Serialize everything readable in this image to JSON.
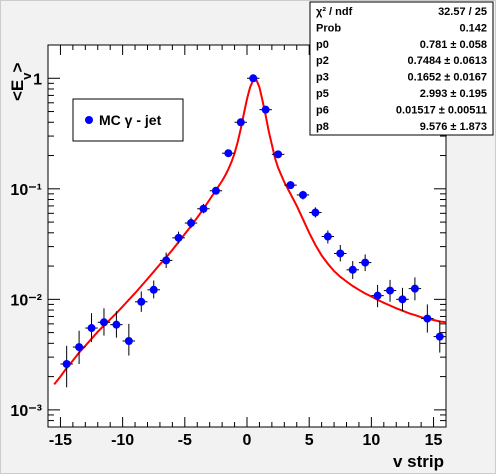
{
  "colors": {
    "marker": "#0000ff",
    "fit": "#ff0000",
    "frame": "#000000",
    "pad": "#f2f2f2"
  },
  "stats": {
    "rows": [
      {
        "label": "χ² / ndf",
        "value": "32.57 / 25"
      },
      {
        "label": "Prob",
        "value": "0.142"
      },
      {
        "label": "p0",
        "value": "0.781 ± 0.058"
      },
      {
        "label": "p2",
        "value": "0.7484 ± 0.0613"
      },
      {
        "label": "p3",
        "value": "0.1652 ± 0.0167"
      },
      {
        "label": "p5",
        "value": "2.993 ± 0.195"
      },
      {
        "label": "p6",
        "value": "0.01517 ± 0.00511"
      },
      {
        "label": "p8",
        "value": "9.576 ± 1.873"
      }
    ]
  },
  "chart_data": {
    "type": "scatter",
    "xlabel": "v strip",
    "ylabel": "<E_v>",
    "xlim": [
      -16,
      16
    ],
    "ylim": [
      0.0007,
      2.0
    ],
    "yscale": "log",
    "grid": false,
    "legend_position": "top-left",
    "x_ticks": [
      -15,
      -10,
      -5,
      0,
      5,
      10,
      15
    ],
    "x_tick_labels": [
      "-15",
      "-10",
      "-5",
      "0",
      "5",
      "10",
      "15"
    ],
    "y_ticks": [
      0.001,
      0.01,
      0.1,
      1
    ],
    "y_tick_labels": [
      "10⁻³",
      "10⁻²",
      "10⁻¹",
      "1"
    ],
    "series": [
      {
        "name": "MC γ - jet",
        "marker": "circle",
        "points": [
          {
            "x": -14.5,
            "y": 0.0026,
            "ylo": 0.0016,
            "yhi": 0.0038
          },
          {
            "x": -13.5,
            "y": 0.0037,
            "ylo": 0.0026,
            "yhi": 0.0052
          },
          {
            "x": -12.5,
            "y": 0.0055,
            "ylo": 0.0041,
            "yhi": 0.0075
          },
          {
            "x": -11.5,
            "y": 0.0062,
            "ylo": 0.0047,
            "yhi": 0.0083
          },
          {
            "x": -10.5,
            "y": 0.0059,
            "ylo": 0.0045,
            "yhi": 0.0078
          },
          {
            "x": -9.5,
            "y": 0.0042,
            "ylo": 0.0031,
            "yhi": 0.006
          },
          {
            "x": -8.5,
            "y": 0.0095,
            "ylo": 0.0077,
            "yhi": 0.0118
          },
          {
            "x": -7.5,
            "y": 0.0122,
            "ylo": 0.0102,
            "yhi": 0.0148
          },
          {
            "x": -6.5,
            "y": 0.0225,
            "ylo": 0.0192,
            "yhi": 0.0265
          },
          {
            "x": -5.5,
            "y": 0.036,
            "ylo": 0.032,
            "yhi": 0.041
          },
          {
            "x": -4.5,
            "y": 0.049,
            "ylo": 0.044,
            "yhi": 0.055
          },
          {
            "x": -3.5,
            "y": 0.066,
            "ylo": 0.06,
            "yhi": 0.073
          },
          {
            "x": -2.5,
            "y": 0.096,
            "ylo": 0.089,
            "yhi": 0.104
          },
          {
            "x": -1.5,
            "y": 0.21,
            "ylo": 0.198,
            "yhi": 0.223
          },
          {
            "x": -0.5,
            "y": 0.4,
            "ylo": 0.385,
            "yhi": 0.415
          },
          {
            "x": 0.5,
            "y": 1.0,
            "ylo": 0.975,
            "yhi": 1.025
          },
          {
            "x": 1.5,
            "y": 0.52,
            "ylo": 0.502,
            "yhi": 0.538
          },
          {
            "x": 2.5,
            "y": 0.205,
            "ylo": 0.193,
            "yhi": 0.218
          },
          {
            "x": 3.5,
            "y": 0.108,
            "ylo": 0.1,
            "yhi": 0.117
          },
          {
            "x": 4.5,
            "y": 0.088,
            "ylo": 0.08,
            "yhi": 0.096
          },
          {
            "x": 5.5,
            "y": 0.061,
            "ylo": 0.055,
            "yhi": 0.068
          },
          {
            "x": 6.5,
            "y": 0.037,
            "ylo": 0.032,
            "yhi": 0.042
          },
          {
            "x": 7.5,
            "y": 0.026,
            "ylo": 0.022,
            "yhi": 0.031
          },
          {
            "x": 8.5,
            "y": 0.0185,
            "ylo": 0.0153,
            "yhi": 0.0222
          },
          {
            "x": 9.5,
            "y": 0.0215,
            "ylo": 0.018,
            "yhi": 0.0255
          },
          {
            "x": 10.5,
            "y": 0.0108,
            "ylo": 0.0085,
            "yhi": 0.0135
          },
          {
            "x": 11.5,
            "y": 0.012,
            "ylo": 0.0095,
            "yhi": 0.015
          },
          {
            "x": 12.5,
            "y": 0.01,
            "ylo": 0.0078,
            "yhi": 0.0127
          },
          {
            "x": 13.5,
            "y": 0.0125,
            "ylo": 0.0098,
            "yhi": 0.0158
          },
          {
            "x": 14.5,
            "y": 0.0067,
            "ylo": 0.005,
            "yhi": 0.009
          },
          {
            "x": 15.5,
            "y": 0.0046,
            "ylo": 0.0033,
            "yhi": 0.0064
          }
        ]
      },
      {
        "name": "fit",
        "type": "line",
        "x": [
          -15.5,
          -15,
          -14.5,
          -14,
          -13.5,
          -13,
          -12.5,
          -12,
          -11.5,
          -11,
          -10.5,
          -10,
          -9.5,
          -9,
          -8.5,
          -8,
          -7.5,
          -7,
          -6.5,
          -6,
          -5.5,
          -5,
          -4.5,
          -4,
          -3.5,
          -3,
          -2.5,
          -2,
          -1.75,
          -1.5,
          -1.25,
          -1,
          -0.75,
          -0.5,
          -0.25,
          0,
          0.25,
          0.5,
          0.6,
          0.75,
          1,
          1.25,
          1.5,
          1.75,
          2,
          2.25,
          2.5,
          3,
          3.5,
          4,
          4.5,
          5,
          5.5,
          6,
          6.5,
          7,
          7.5,
          8,
          8.5,
          9,
          9.5,
          10,
          10.5,
          11,
          11.5,
          12,
          12.5,
          13,
          13.5,
          14,
          14.5,
          15,
          15.5,
          16
        ],
        "y": [
          0.0017,
          0.002,
          0.0024,
          0.0028,
          0.0033,
          0.0038,
          0.0044,
          0.0051,
          0.0058,
          0.0066,
          0.0075,
          0.0086,
          0.0099,
          0.0114,
          0.0132,
          0.0153,
          0.0178,
          0.0207,
          0.024,
          0.028,
          0.033,
          0.039,
          0.046,
          0.055,
          0.066,
          0.08,
          0.097,
          0.118,
          0.132,
          0.15,
          0.175,
          0.21,
          0.265,
          0.35,
          0.48,
          0.65,
          0.83,
          0.96,
          0.99,
          0.97,
          0.83,
          0.63,
          0.46,
          0.33,
          0.25,
          0.19,
          0.155,
          0.115,
          0.09,
          0.07,
          0.053,
          0.04,
          0.031,
          0.025,
          0.021,
          0.018,
          0.016,
          0.0145,
          0.0132,
          0.0122,
          0.0113,
          0.0106,
          0.0099,
          0.0093,
          0.0088,
          0.0083,
          0.0079,
          0.0075,
          0.0072,
          0.0069,
          0.0067,
          0.0065,
          0.0063,
          0.0062
        ]
      }
    ]
  }
}
